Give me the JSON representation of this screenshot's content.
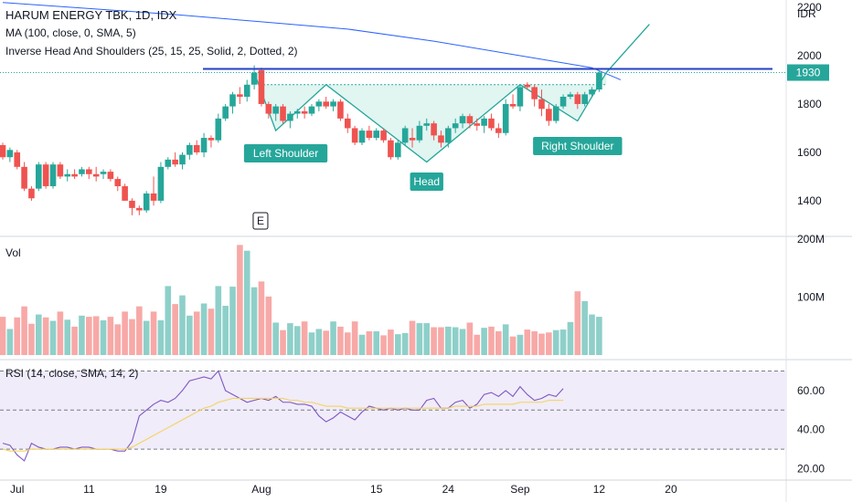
{
  "header": {
    "symbol_line": "HARUM ENERGY TBK, 1D, IDX",
    "ma_line": "MA (100, close, 0, SMA, 5)",
    "pattern_line": "Inverse Head And Shoulders (25, 15, 25, Solid, 2, Dotted, 2)"
  },
  "colors": {
    "up": "#26a69a",
    "down": "#ef5350",
    "up_vol": "#8ed0c9",
    "down_vol": "#f7a9a7",
    "ma": "#2962ff",
    "pattern": "#26a69a",
    "pattern_fill": "#d9f2ee",
    "rsi": "#7e57c2",
    "rsi_ma": "#f4d35e",
    "rsi_band": "#f0ecf9",
    "resistance": "#2540c4",
    "axis_text": "#131722"
  },
  "chart_data": [
    {
      "type": "candlestick",
      "title": "HARUM ENERGY TBK, 1D, IDX",
      "currency_label": "IDR",
      "ylim": [
        1260,
        2200
      ],
      "y_ticks": [
        1400,
        1600,
        1800,
        2000,
        2200
      ],
      "last_price_label": "1930",
      "resistance_level": 1945,
      "x_ticks": [
        "Jul",
        "11",
        "19",
        "Aug",
        "15",
        "24",
        "Sep",
        "12",
        "20"
      ],
      "x_tick_index": [
        2,
        12,
        22,
        36,
        52,
        62,
        72,
        83,
        93
      ],
      "earnings_marker": {
        "label": "E",
        "index": 36
      },
      "ohlc": [
        [
          1630,
          1640,
          1570,
          1580
        ],
        [
          1580,
          1620,
          1560,
          1610
        ],
        [
          1600,
          1610,
          1530,
          1540
        ],
        [
          1540,
          1560,
          1440,
          1450
        ],
        [
          1450,
          1460,
          1400,
          1410
        ],
        [
          1450,
          1560,
          1440,
          1550
        ],
        [
          1550,
          1560,
          1450,
          1460
        ],
        [
          1460,
          1560,
          1450,
          1550
        ],
        [
          1550,
          1560,
          1490,
          1500
        ],
        [
          1500,
          1530,
          1480,
          1510
        ],
        [
          1510,
          1530,
          1490,
          1500
        ],
        [
          1510,
          1540,
          1500,
          1530
        ],
        [
          1530,
          1540,
          1490,
          1510
        ],
        [
          1510,
          1540,
          1480,
          1500
        ],
        [
          1510,
          1530,
          1490,
          1520
        ],
        [
          1520,
          1530,
          1480,
          1490
        ],
        [
          1490,
          1500,
          1440,
          1460
        ],
        [
          1460,
          1470,
          1400,
          1400
        ],
        [
          1400,
          1410,
          1340,
          1370
        ],
        [
          1370,
          1380,
          1340,
          1360
        ],
        [
          1360,
          1440,
          1350,
          1430
        ],
        [
          1430,
          1500,
          1380,
          1400
        ],
        [
          1400,
          1560,
          1390,
          1540
        ],
        [
          1540,
          1580,
          1530,
          1570
        ],
        [
          1570,
          1600,
          1540,
          1550
        ],
        [
          1550,
          1600,
          1530,
          1590
        ],
        [
          1590,
          1640,
          1570,
          1630
        ],
        [
          1630,
          1650,
          1590,
          1600
        ],
        [
          1600,
          1680,
          1580,
          1660
        ],
        [
          1660,
          1670,
          1620,
          1650
        ],
        [
          1650,
          1760,
          1640,
          1740
        ],
        [
          1740,
          1800,
          1730,
          1790
        ],
        [
          1790,
          1850,
          1760,
          1840
        ],
        [
          1840,
          1870,
          1800,
          1830
        ],
        [
          1830,
          1900,
          1810,
          1880
        ],
        [
          1880,
          1960,
          1860,
          1930
        ],
        [
          1940,
          1950,
          1790,
          1800
        ],
        [
          1800,
          1810,
          1740,
          1760
        ],
        [
          1760,
          1800,
          1730,
          1790
        ],
        [
          1790,
          1800,
          1720,
          1730
        ],
        [
          1730,
          1770,
          1700,
          1760
        ],
        [
          1760,
          1780,
          1740,
          1770
        ],
        [
          1770,
          1790,
          1740,
          1760
        ],
        [
          1760,
          1800,
          1750,
          1790
        ],
        [
          1790,
          1820,
          1770,
          1810
        ],
        [
          1810,
          1830,
          1780,
          1790
        ],
        [
          1790,
          1820,
          1770,
          1810
        ],
        [
          1810,
          1820,
          1730,
          1740
        ],
        [
          1740,
          1760,
          1680,
          1700
        ],
        [
          1700,
          1710,
          1630,
          1640
        ],
        [
          1640,
          1700,
          1630,
          1690
        ],
        [
          1690,
          1710,
          1650,
          1660
        ],
        [
          1660,
          1700,
          1650,
          1690
        ],
        [
          1690,
          1700,
          1640,
          1650
        ],
        [
          1650,
          1660,
          1570,
          1580
        ],
        [
          1580,
          1650,
          1570,
          1640
        ],
        [
          1640,
          1710,
          1630,
          1700
        ],
        [
          1660,
          1700,
          1620,
          1650
        ],
        [
          1650,
          1730,
          1640,
          1710
        ],
        [
          1710,
          1740,
          1690,
          1720
        ],
        [
          1720,
          1730,
          1650,
          1670
        ],
        [
          1670,
          1690,
          1620,
          1640
        ],
        [
          1640,
          1710,
          1620,
          1700
        ],
        [
          1700,
          1740,
          1680,
          1720
        ],
        [
          1720,
          1760,
          1700,
          1750
        ],
        [
          1750,
          1760,
          1700,
          1720
        ],
        [
          1720,
          1740,
          1690,
          1710
        ],
        [
          1710,
          1750,
          1680,
          1740
        ],
        [
          1740,
          1760,
          1690,
          1700
        ],
        [
          1700,
          1720,
          1660,
          1680
        ],
        [
          1680,
          1820,
          1670,
          1800
        ],
        [
          1800,
          1840,
          1780,
          1790
        ],
        [
          1790,
          1880,
          1770,
          1870
        ],
        [
          1880,
          1890,
          1860,
          1870
        ],
        [
          1870,
          1880,
          1790,
          1820
        ],
        [
          1820,
          1860,
          1750,
          1780
        ],
        [
          1780,
          1800,
          1710,
          1730
        ],
        [
          1730,
          1800,
          1720,
          1790
        ],
        [
          1790,
          1840,
          1780,
          1830
        ],
        [
          1830,
          1850,
          1820,
          1840
        ],
        [
          1840,
          1850,
          1780,
          1800
        ],
        [
          1800,
          1850,
          1790,
          1840
        ],
        [
          1840,
          1870,
          1830,
          1860
        ],
        [
          1860,
          1940,
          1850,
          1930
        ]
      ],
      "ma_100": [
        [
          0,
          2220
        ],
        [
          24,
          2170
        ],
        [
          36,
          2140
        ],
        [
          48,
          2110
        ],
        [
          60,
          2060
        ],
        [
          72,
          2000
        ],
        [
          82,
          1950
        ],
        [
          86,
          1900
        ]
      ],
      "pattern_points": [
        {
          "index": 35,
          "price": 1930
        },
        {
          "index": 38,
          "price": 1690
        },
        {
          "index": 45,
          "price": 1880
        },
        {
          "index": 59,
          "price": 1560
        },
        {
          "index": 72,
          "price": 1880
        },
        {
          "index": 80,
          "price": 1730
        },
        {
          "index": 84,
          "price": 1930
        },
        {
          "index": 90,
          "price": 2130
        }
      ],
      "neckline_price": 1880,
      "pattern_labels": [
        {
          "text": "Left Shoulder",
          "index": 39
        },
        {
          "text": "Head",
          "index": 59
        },
        {
          "text": "Right Shoulder",
          "index": 80
        }
      ]
    },
    {
      "type": "bar",
      "title": "Vol",
      "ylim": [
        0,
        200
      ],
      "unit": "M",
      "y_ticks": [
        "100M",
        "200M"
      ],
      "y_tick_values": [
        100,
        200
      ],
      "values": [
        66,
        45,
        65,
        84,
        54,
        70,
        65,
        59,
        75,
        61,
        49,
        68,
        66,
        67,
        60,
        66,
        53,
        75,
        62,
        84,
        59,
        75,
        60,
        119,
        88,
        103,
        68,
        75,
        89,
        80,
        119,
        85,
        118,
        190,
        180,
        117,
        127,
        101,
        56,
        43,
        55,
        50,
        58,
        39,
        45,
        42,
        58,
        49,
        39,
        58,
        35,
        41,
        41,
        34,
        44,
        36,
        38,
        59,
        55,
        55,
        48,
        48,
        49,
        48,
        45,
        56,
        35,
        47,
        49,
        41,
        53,
        32,
        35,
        44,
        41,
        37,
        39,
        43,
        44,
        57,
        110,
        93,
        70,
        66,
        40,
        56,
        40,
        60,
        53,
        44,
        51,
        48,
        37,
        77,
        36,
        112,
        116,
        99
      ],
      "volume_values": [
        66,
        45,
        65,
        84,
        54,
        70,
        65,
        59,
        75,
        61,
        49,
        68,
        66,
        67,
        60,
        66,
        53,
        75,
        62,
        84,
        59,
        75,
        60,
        119,
        88,
        103,
        68,
        75,
        89,
        80,
        119,
        85,
        118,
        190,
        180,
        117,
        127,
        101
      ],
      "volume_tail": [
        56,
        43,
        55,
        50,
        58,
        39,
        45,
        42,
        58,
        49,
        39,
        58,
        35,
        41,
        41,
        34,
        44,
        36,
        38,
        59,
        55,
        55,
        48,
        48,
        49,
        48,
        45,
        56,
        35,
        47,
        49,
        41,
        53,
        32,
        35,
        44,
        41,
        37,
        39,
        43,
        44,
        57,
        110,
        93,
        70,
        66,
        40,
        56,
        40,
        60,
        53,
        44,
        51,
        48,
        37,
        77,
        36,
        112,
        116,
        99
      ]
    },
    {
      "type": "line",
      "title": "RSI (14, close, SMA, 14, 2)",
      "ylim": [
        16,
        74
      ],
      "y_ticks": [
        20,
        40,
        60
      ],
      "y_tick_labels": [
        "20.00",
        "40.00",
        "60.00"
      ],
      "bands": [
        30,
        50,
        70
      ],
      "series": [
        {
          "name": "RSI",
          "values": [
            33,
            32,
            27,
            24,
            33,
            31,
            30,
            30,
            31,
            31,
            30,
            31,
            31,
            30,
            30,
            30,
            29,
            29,
            34,
            47,
            50,
            53,
            55,
            54,
            56,
            60,
            65,
            66,
            67,
            66,
            70,
            60,
            58,
            56,
            54,
            55,
            56,
            55,
            57,
            54,
            54,
            53,
            53,
            52,
            47,
            44,
            46,
            49,
            47,
            45,
            49,
            52,
            51,
            50,
            51,
            50,
            51,
            50,
            50,
            55,
            56,
            51,
            51,
            54,
            55,
            51,
            53,
            58,
            59,
            57,
            60,
            57,
            62,
            58,
            55,
            56,
            58,
            57,
            61
          ]
        },
        {
          "name": "RSI MA",
          "values": [
            30,
            29,
            29,
            29,
            30,
            30,
            30,
            30,
            30,
            30,
            30,
            30,
            30,
            30,
            30,
            30,
            30,
            30,
            31,
            33,
            35,
            37,
            39,
            41,
            43,
            45,
            47,
            49,
            51,
            52,
            54,
            55,
            56,
            56,
            56,
            56,
            56,
            56,
            56,
            56,
            55,
            55,
            54,
            54,
            53,
            52,
            52,
            52,
            51,
            51,
            51,
            51,
            51,
            51,
            51,
            51,
            51,
            51,
            51,
            51,
            51,
            51,
            51,
            52,
            52,
            52,
            52,
            53,
            53,
            53,
            53,
            53,
            54,
            54,
            54,
            54,
            55,
            55,
            55
          ]
        }
      ]
    }
  ]
}
